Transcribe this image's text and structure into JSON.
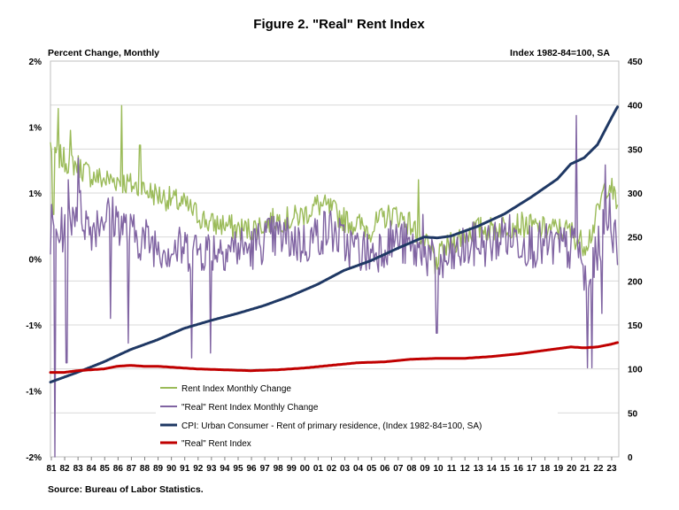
{
  "chart_data": {
    "type": "line",
    "title": "Figure 2. \"Real\" Rent Index",
    "ylabel_left": "Percent Change, Monthly",
    "ylabel_right": "Index 1982-84=100, SA",
    "source": "Source: Bureau of Labor Statistics.",
    "left_axis": {
      "ylim": [
        -2,
        2
      ],
      "tick_labels": [
        "2%",
        "1%",
        "1%",
        "0%",
        "-1%",
        "-1%",
        "-2%"
      ]
    },
    "right_axis": {
      "ylim": [
        0,
        450
      ],
      "ticks": [
        450,
        400,
        350,
        300,
        250,
        200,
        150,
        100,
        50,
        0
      ]
    },
    "x_tick_labels": [
      "81",
      "82",
      "83",
      "84",
      "85",
      "86",
      "87",
      "88",
      "89",
      "90",
      "91",
      "92",
      "93",
      "94",
      "95",
      "96",
      "97",
      "98",
      "99",
      "00",
      "01",
      "02",
      "03",
      "04",
      "05",
      "06",
      "07",
      "08",
      "09",
      "10",
      "11",
      "12",
      "13",
      "14",
      "15",
      "16",
      "17",
      "18",
      "19",
      "20",
      "21",
      "22",
      "23"
    ],
    "xlim": [
      1981.0,
      2023.6
    ],
    "gridlines": true,
    "series": [
      {
        "name": "Rent Index Monthly Change",
        "axis": "left",
        "color": "#9bbb59",
        "type": "monthly",
        "anchors": [
          [
            1981.0,
            1.15
          ],
          [
            1981.5,
            1.05
          ],
          [
            1982.0,
            1.0
          ],
          [
            1983.0,
            0.95
          ],
          [
            1984.0,
            0.85
          ],
          [
            1985.0,
            0.8
          ],
          [
            1986.0,
            0.8
          ],
          [
            1987.0,
            0.75
          ],
          [
            1988.0,
            0.7
          ],
          [
            1989.0,
            0.65
          ],
          [
            1990.0,
            0.6
          ],
          [
            1991.0,
            0.55
          ],
          [
            1992.0,
            0.45
          ],
          [
            1993.0,
            0.35
          ],
          [
            1994.0,
            0.35
          ],
          [
            1995.0,
            0.3
          ],
          [
            1996.0,
            0.3
          ],
          [
            1997.0,
            0.35
          ],
          [
            1998.0,
            0.4
          ],
          [
            1999.0,
            0.4
          ],
          [
            2000.0,
            0.45
          ],
          [
            2001.0,
            0.55
          ],
          [
            2002.0,
            0.5
          ],
          [
            2003.0,
            0.4
          ],
          [
            2004.0,
            0.35
          ],
          [
            2005.0,
            0.3
          ],
          [
            2006.0,
            0.42
          ],
          [
            2007.0,
            0.45
          ],
          [
            2008.0,
            0.35
          ],
          [
            2009.0,
            0.15
          ],
          [
            2010.0,
            0.0
          ],
          [
            2011.0,
            0.15
          ],
          [
            2012.0,
            0.25
          ],
          [
            2013.0,
            0.3
          ],
          [
            2014.0,
            0.3
          ],
          [
            2015.0,
            0.33
          ],
          [
            2016.0,
            0.35
          ],
          [
            2017.0,
            0.33
          ],
          [
            2018.0,
            0.3
          ],
          [
            2019.0,
            0.3
          ],
          [
            2020.0,
            0.28
          ],
          [
            2020.5,
            0.2
          ],
          [
            2021.0,
            0.15
          ],
          [
            2021.5,
            0.25
          ],
          [
            2022.0,
            0.45
          ],
          [
            2022.5,
            0.7
          ],
          [
            2022.9,
            0.78
          ],
          [
            2023.3,
            0.6
          ],
          [
            2023.5,
            0.5
          ]
        ],
        "peaks": [
          [
            1981.6,
            1.52
          ],
          [
            1986.35,
            1.55
          ],
          [
            1982.5,
            1.3
          ],
          [
            1987.7,
            1.15
          ],
          [
            2008.6,
            0.8
          ]
        ],
        "dips": [
          [
            1981.2,
            0.45
          ],
          [
            2009.8,
            -0.15
          ]
        ]
      },
      {
        "name": "\"Real\" Rent Index Monthly Change",
        "axis": "left",
        "color": "#8064a2",
        "type": "monthly",
        "anchors": [
          [
            1981.0,
            0.2
          ],
          [
            1982.0,
            0.3
          ],
          [
            1983.0,
            0.55
          ],
          [
            1984.0,
            0.3
          ],
          [
            1985.0,
            0.45
          ],
          [
            1986.0,
            0.4
          ],
          [
            1987.0,
            0.25
          ],
          [
            1988.0,
            0.2
          ],
          [
            1989.0,
            0.15
          ],
          [
            1990.0,
            0.1
          ],
          [
            1991.0,
            0.1
          ],
          [
            1992.0,
            0.1
          ],
          [
            1993.0,
            0.1
          ],
          [
            1994.0,
            0.12
          ],
          [
            1995.0,
            0.12
          ],
          [
            1996.0,
            0.1
          ],
          [
            1997.0,
            0.2
          ],
          [
            1998.0,
            0.22
          ],
          [
            1999.0,
            0.2
          ],
          [
            2000.0,
            0.15
          ],
          [
            2001.0,
            0.25
          ],
          [
            2002.0,
            0.3
          ],
          [
            2003.0,
            0.15
          ],
          [
            2004.0,
            0.1
          ],
          [
            2005.0,
            0.05
          ],
          [
            2006.0,
            0.15
          ],
          [
            2007.0,
            0.2
          ],
          [
            2008.0,
            0.1
          ],
          [
            2009.0,
            0.05
          ],
          [
            2010.0,
            -0.1
          ],
          [
            2011.0,
            0.0
          ],
          [
            2012.0,
            0.1
          ],
          [
            2013.0,
            0.15
          ],
          [
            2014.0,
            0.15
          ],
          [
            2015.0,
            0.25
          ],
          [
            2016.0,
            0.2
          ],
          [
            2017.0,
            0.15
          ],
          [
            2018.0,
            0.12
          ],
          [
            2019.0,
            0.12
          ],
          [
            2020.0,
            0.1
          ],
          [
            2020.5,
            0.15
          ],
          [
            2021.0,
            -0.2
          ],
          [
            2021.4,
            -0.3
          ],
          [
            2022.0,
            0.1
          ],
          [
            2022.5,
            0.3
          ],
          [
            2022.9,
            0.5
          ],
          [
            2023.3,
            0.2
          ],
          [
            2023.5,
            0.15
          ]
        ],
        "peaks": [
          [
            1981.1,
            0.55
          ],
          [
            1983.1,
            1.02
          ],
          [
            1982.3,
            0.8
          ],
          [
            2020.4,
            1.45
          ],
          [
            2022.6,
            0.95
          ],
          [
            2008.9,
            0.45
          ]
        ],
        "dips": [
          [
            1981.35,
            -2.0
          ],
          [
            1982.2,
            -1.05
          ],
          [
            1985.5,
            -0.6
          ],
          [
            1986.8,
            -0.85
          ],
          [
            1991.6,
            -1.0
          ],
          [
            1993.0,
            -0.95
          ],
          [
            2009.95,
            -0.75
          ],
          [
            2021.25,
            -1.1
          ],
          [
            2021.55,
            -1.1
          ],
          [
            2022.3,
            -0.55
          ]
        ]
      },
      {
        "name": "CPI: Urban Consumer - Rent of primary residence, (Index 1982-84=100, SA)",
        "axis": "right",
        "color": "#1f3864",
        "type": "smooth",
        "points": [
          [
            1981.0,
            85
          ],
          [
            1983.0,
            96
          ],
          [
            1985.0,
            108
          ],
          [
            1987.0,
            122
          ],
          [
            1989.0,
            133
          ],
          [
            1991.0,
            146
          ],
          [
            1993.0,
            155
          ],
          [
            1995.0,
            163
          ],
          [
            1997.0,
            172
          ],
          [
            1999.0,
            183
          ],
          [
            2001.0,
            196
          ],
          [
            2003.0,
            212
          ],
          [
            2005.0,
            223
          ],
          [
            2007.0,
            237
          ],
          [
            2009.0,
            250
          ],
          [
            2010.0,
            249
          ],
          [
            2011.0,
            251
          ],
          [
            2013.0,
            262
          ],
          [
            2015.0,
            276
          ],
          [
            2017.0,
            295
          ],
          [
            2019.0,
            316
          ],
          [
            2020.0,
            333
          ],
          [
            2021.0,
            340
          ],
          [
            2022.0,
            355
          ],
          [
            2023.0,
            384
          ],
          [
            2023.5,
            398
          ]
        ]
      },
      {
        "name": "\"Real\" Rent Index",
        "axis": "right",
        "color": "#c00000",
        "type": "smooth",
        "points": [
          [
            1981.0,
            96
          ],
          [
            1982.0,
            96
          ],
          [
            1983.0,
            98
          ],
          [
            1984.0,
            99
          ],
          [
            1985.0,
            100
          ],
          [
            1986.0,
            103
          ],
          [
            1987.0,
            104
          ],
          [
            1988.0,
            103
          ],
          [
            1989.0,
            103
          ],
          [
            1990.0,
            102
          ],
          [
            1991.0,
            101
          ],
          [
            1992.0,
            100
          ],
          [
            1994.0,
            99
          ],
          [
            1996.0,
            98
          ],
          [
            1998.0,
            99
          ],
          [
            2000.0,
            101
          ],
          [
            2002.0,
            104
          ],
          [
            2004.0,
            107
          ],
          [
            2006.0,
            108
          ],
          [
            2008.0,
            111
          ],
          [
            2010.0,
            112
          ],
          [
            2012.0,
            112
          ],
          [
            2014.0,
            114
          ],
          [
            2016.0,
            117
          ],
          [
            2018.0,
            121
          ],
          [
            2020.0,
            125
          ],
          [
            2021.0,
            124
          ],
          [
            2022.0,
            125
          ],
          [
            2023.0,
            128
          ],
          [
            2023.5,
            130
          ]
        ]
      }
    ]
  }
}
